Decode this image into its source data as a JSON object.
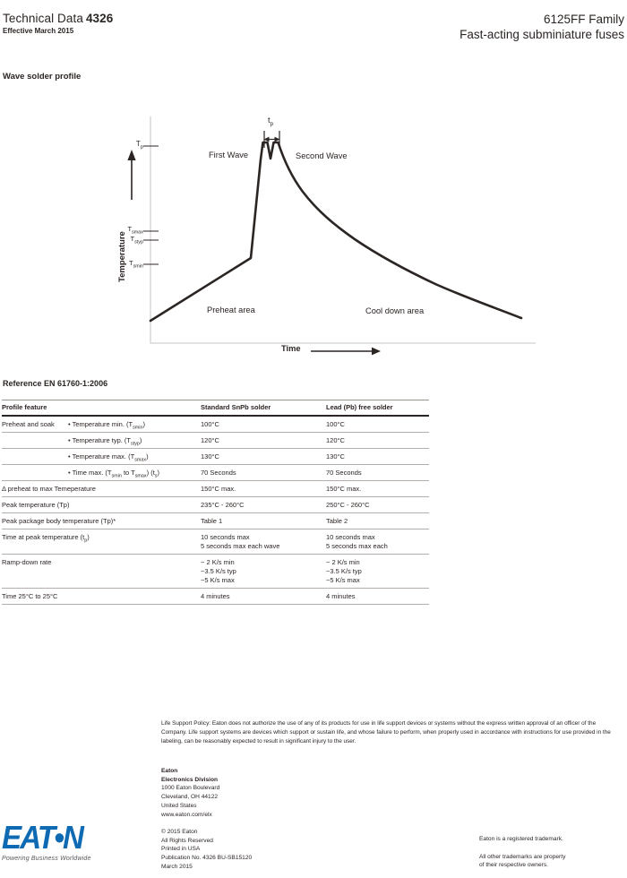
{
  "header": {
    "doc_type": "Technical Data",
    "doc_number": "4326",
    "effective_date": "Effective March 2015",
    "product_family": "6125FF Family",
    "product_subtitle": "Fast-acting subminiature fuses"
  },
  "section_title": "Wave solder profile",
  "chart": {
    "y_axis_label": "Temperature",
    "x_axis_label": "Time",
    "tick_tp": [
      {
        "t": "T"
      },
      {
        "s": "p"
      }
    ],
    "tick_tsmax": [
      {
        "t": "T"
      },
      {
        "s": "smax"
      }
    ],
    "tick_tstyp": [
      {
        "t": "T"
      },
      {
        "s": "styp"
      }
    ],
    "tick_tsmin": [
      {
        "t": "T"
      },
      {
        "s": "smin"
      }
    ],
    "peak_time_label": [
      {
        "t": "t"
      },
      {
        "s": "p"
      }
    ],
    "first_wave": "First Wave",
    "second_wave": "Second Wave",
    "preheat_area": "Preheat area",
    "cooldown_area": "Cool down area"
  },
  "chart_data": {
    "type": "line",
    "title": "Wave solder profile",
    "xlabel": "Time",
    "ylabel": "Temperature",
    "y_tick_labels": [
      "Tp",
      "Tsmax",
      "Tstyp",
      "Tsmin"
    ],
    "annotations": [
      "tp (time at peak, double arrow between wave peaks)",
      "First Wave",
      "Second Wave",
      "Preheat area",
      "Cool down area"
    ],
    "shape": "Linear preheat ramp from ambient up to a knee near Tsmin, steep rise to double peak at Tp (first wave and second wave separated by notch of width tp), then exponential cool-down back toward ambient"
  },
  "reference_title": "Reference EN 61760-1:2006",
  "table": {
    "col_feature": "Profile feature",
    "col_std": "Standard SnPb solder",
    "col_pbfree": "Lead (Pb) free solder",
    "rows": [
      {
        "group": "Preheat and soak",
        "feature": [
          {
            "t": "• Temperature min. (T"
          },
          {
            "s": "smin"
          },
          {
            "t": ")"
          }
        ],
        "std": "100°C",
        "pbfree": "100°C"
      },
      {
        "group": "",
        "feature": [
          {
            "t": "• Temperature typ. (T"
          },
          {
            "s": "styp"
          },
          {
            "t": ")"
          }
        ],
        "std": "120°C",
        "pbfree": "120°C"
      },
      {
        "group": "",
        "feature": [
          {
            "t": "• Temperature max. (T"
          },
          {
            "s": "smax"
          },
          {
            "t": ")"
          }
        ],
        "std": "130°C",
        "pbfree": "130°C"
      },
      {
        "group": "",
        "feature": [
          {
            "t": "• Time max. (T"
          },
          {
            "s": "smin"
          },
          {
            "t": " to T"
          },
          {
            "s": "smax"
          },
          {
            "t": ") (t"
          },
          {
            "s": "s"
          },
          {
            "t": ")"
          }
        ],
        "std": "70 Seconds",
        "pbfree": "70 Seconds"
      },
      {
        "feature": [
          {
            "t": "Δ preheat to max Temeperature"
          }
        ],
        "std": "150°C max.",
        "pbfree": "150°C max."
      },
      {
        "feature": [
          {
            "t": "Peak temperature (Tp)"
          }
        ],
        "std": "235°C - 260°C",
        "pbfree": "250°C - 260°C"
      },
      {
        "feature": [
          {
            "t": "Peak package body temperature (Tp)*"
          }
        ],
        "std": "Table 1",
        "pbfree": "Table 2"
      },
      {
        "feature": [
          {
            "t": "Time at peak temperature (t"
          },
          {
            "s": "p"
          },
          {
            "t": ")"
          }
        ],
        "std": "10 seconds max\n5 seconds max each wave",
        "pbfree": "10 seconds max\n5 seconds max each"
      },
      {
        "feature": [
          {
            "t": "Ramp-down rate"
          }
        ],
        "std": "~ 2 K/s min\n~3.5 K/s typ\n~5 K/s max",
        "pbfree": "~ 2 K/s min\n~3.5 K/s typ\n~5 K/s max"
      },
      {
        "feature": [
          {
            "t": "Time 25°C to 25°C"
          }
        ],
        "std": "4 minutes",
        "pbfree": "4 minutes"
      }
    ]
  },
  "footer": {
    "life_support_policy": "Life Support Policy: Eaton does not authorize the use of any of its products for use in life support devices or systems without the express written approval of an officer of the Company. Life support systems are devices which support or sustain life, and whose failure to perform, when properly used in accordance with instructions for use provided in the labeling, can be reasonably expected to result in significant injury to the user.",
    "address": {
      "company": "Eaton",
      "division": "Electronics Division",
      "street": "1000 Eaton Boulevard",
      "city": "Cleveland, OH 44122",
      "country": "United States",
      "website": "www.eaton.com/elx"
    },
    "copyright": {
      "line1": "© 2015 Eaton",
      "line2": "All Rights Reserved",
      "line3": "Printed in USA",
      "line4": "Publication No. 4326 BU-SB15120",
      "line5": "March 2015"
    },
    "trademark": {
      "registered": "Eaton is a registered trademark.",
      "others": "All other trademarks are property\nof their respective owners."
    }
  },
  "logo": {
    "wordmark": "EAT•N",
    "tagline": "Powering Business Worldwide",
    "brand_blue": "#0e6ab2",
    "tagline_gray": "#53565a"
  }
}
